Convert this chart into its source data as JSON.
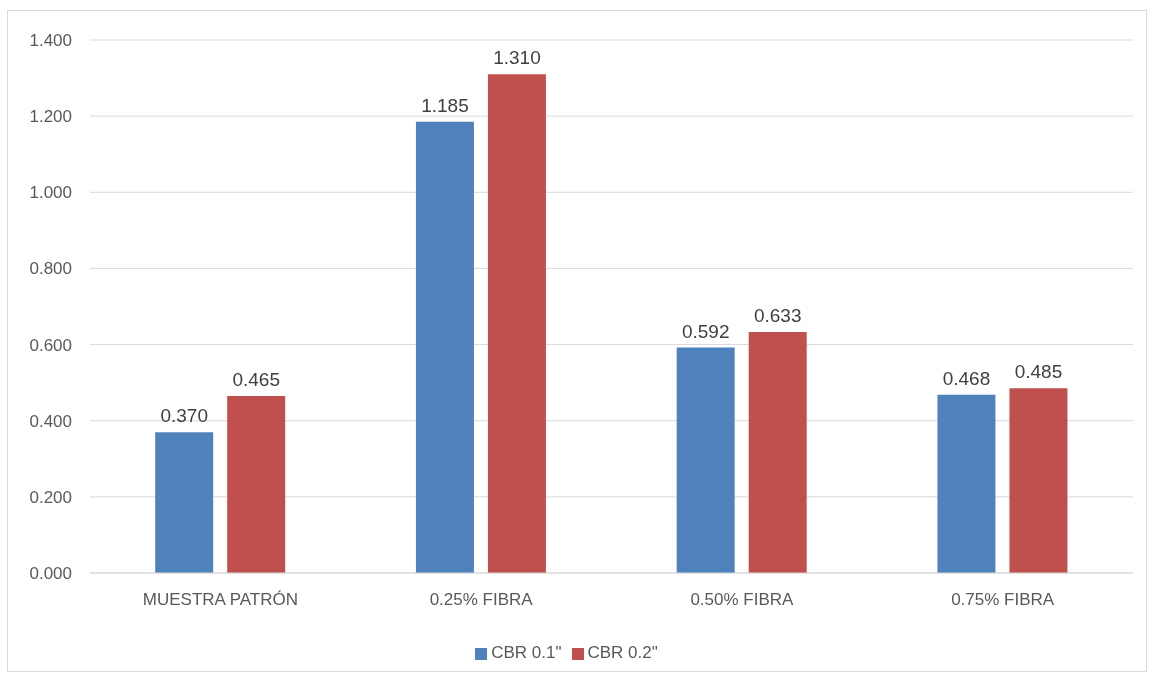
{
  "chart_data": {
    "type": "bar",
    "categories": [
      "MUESTRA PATRÓN",
      "0.25% FIBRA",
      "0.50% FIBRA",
      "0.75% FIBRA"
    ],
    "series": [
      {
        "name": "CBR 0.1\"",
        "color": "#4f81bd",
        "values": [
          0.37,
          1.185,
          0.592,
          0.468
        ],
        "value_labels": [
          "0.370",
          "1.185",
          "0.592",
          "0.468"
        ]
      },
      {
        "name": "CBR 0.2\"",
        "color": "#c0504d",
        "values": [
          0.465,
          1.31,
          0.633,
          0.485
        ],
        "value_labels": [
          "0.465",
          "1.310",
          "0.633",
          "0.485"
        ]
      }
    ],
    "ylim": [
      0,
      1.4
    ],
    "yticks": [
      {
        "value": 0,
        "label": "0.000"
      },
      {
        "value": 0.2,
        "label": "0.200"
      },
      {
        "value": 0.4,
        "label": "0.400"
      },
      {
        "value": 0.6,
        "label": "0.600"
      },
      {
        "value": 0.8,
        "label": "0.800"
      },
      {
        "value": 1,
        "label": "1.000"
      },
      {
        "value": 1.2,
        "label": "1.200"
      },
      {
        "value": 1.4,
        "label": "1.400"
      }
    ],
    "grid": "y",
    "legend": "bottom"
  }
}
